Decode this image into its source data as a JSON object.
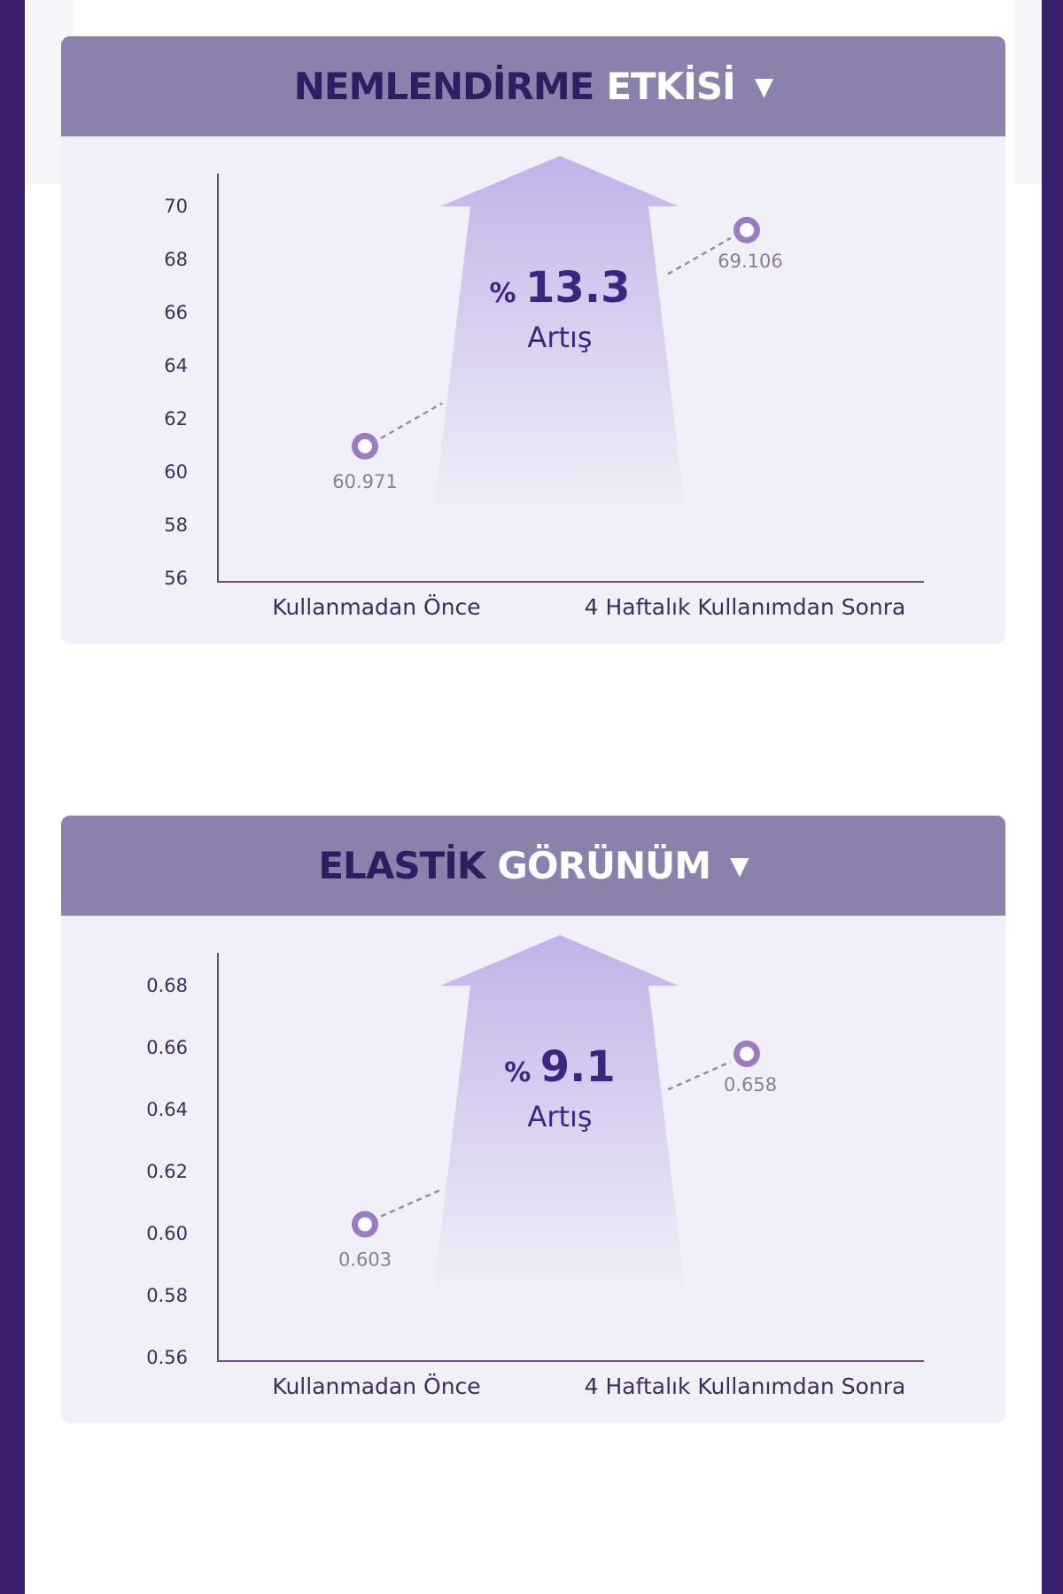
{
  "colors": {
    "frame": "#3a1f6f",
    "header_bg": "#8c80ad",
    "title_dark": "#2e1d63",
    "card_bg": "#f1eff8",
    "marker": "#9a7bc4",
    "text": "#3d2c5e"
  },
  "icons": {
    "caret": "caret-down-icon"
  },
  "chart_data": [
    {
      "type": "line",
      "title": "NEMLENDİRME ETKİSİ",
      "title_parts": [
        "NEMLENDİRME",
        "ETKİSİ"
      ],
      "caret": "▼",
      "categories": [
        "Kullanmadan Önce",
        "4 Haftalık Kullanımdan Sonra"
      ],
      "series": [
        {
          "values": [
            60.971,
            69.106
          ]
        }
      ],
      "value_labels": [
        "60.971",
        "69.106"
      ],
      "yticks": [
        "56",
        "58",
        "60",
        "62",
        "64",
        "66",
        "68",
        "70"
      ],
      "ylim": [
        56,
        70
      ],
      "increase": {
        "prefix": "%",
        "value": "13.3",
        "label": "Artış"
      }
    },
    {
      "type": "line",
      "title": "ELASTİK GÖRÜNÜM",
      "title_parts": [
        "ELASTİK",
        "GÖRÜNÜM"
      ],
      "caret": "▼",
      "categories": [
        "Kullanmadan Önce",
        "4 Haftalık Kullanımdan Sonra"
      ],
      "series": [
        {
          "values": [
            0.603,
            0.658
          ]
        }
      ],
      "value_labels": [
        "0.603",
        "0.658"
      ],
      "yticks": [
        "0.56",
        "0.58",
        "0.60",
        "0.62",
        "0.64",
        "0.66",
        "0.68"
      ],
      "ylim": [
        0.56,
        0.68
      ],
      "increase": {
        "prefix": "%",
        "value": "9.1",
        "label": "Artış"
      }
    }
  ]
}
